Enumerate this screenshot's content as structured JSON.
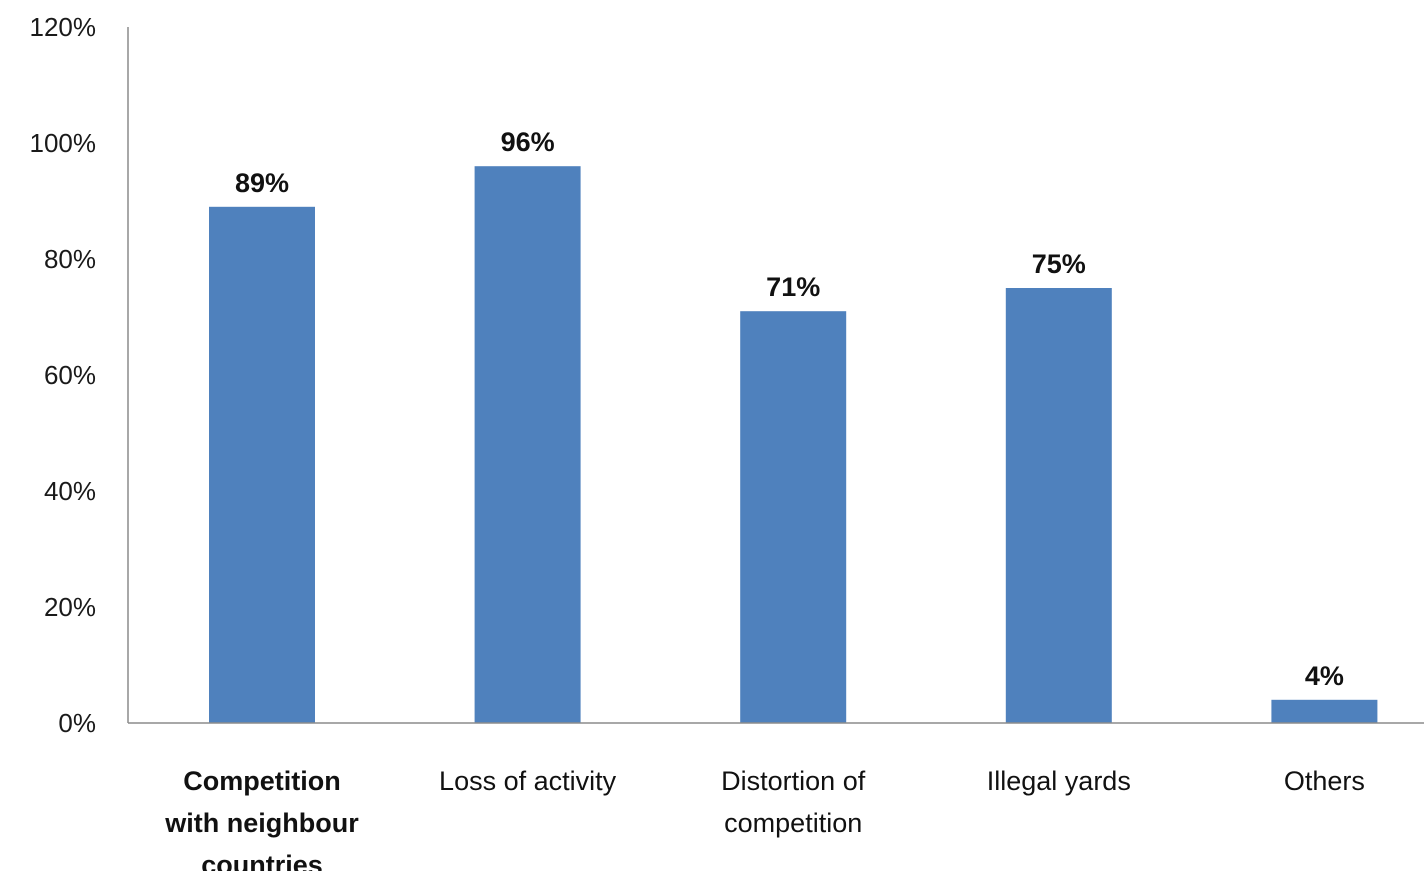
{
  "chart_data": {
    "type": "bar",
    "title": "",
    "xlabel": "",
    "ylabel": "",
    "categories": [
      "Competition with neighbour countries",
      "Loss of activity",
      "Distortion of competition",
      "Illegal yards",
      "Others"
    ],
    "category_lines": [
      [
        "Competition",
        "with neighbour",
        "countries"
      ],
      [
        "Loss of activity"
      ],
      [
        "Distortion of",
        "competition"
      ],
      [
        "Illegal yards"
      ],
      [
        "Others"
      ]
    ],
    "values": [
      89,
      96,
      71,
      75,
      4
    ],
    "data_labels": [
      "89%",
      "96%",
      "71%",
      "75%",
      "4%"
    ],
    "ylim": [
      0,
      120
    ],
    "yticks": [
      0,
      20,
      40,
      60,
      80,
      100,
      120
    ],
    "ytick_labels": [
      "0%",
      "20%",
      "40%",
      "60%",
      "80%",
      "100%",
      "120%"
    ],
    "grid": false,
    "legend": "none",
    "bar_color": "#4f81bd",
    "axis_color": "#8c8c8c",
    "highlighted_category_index": 0
  }
}
